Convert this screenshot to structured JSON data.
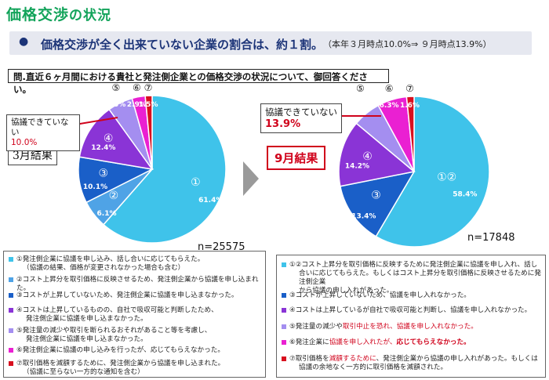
{
  "page": {
    "title_main": "価格交渉",
    "title_rest": "の状況",
    "bullet": "●",
    "headline": "価格交渉が全く出来ていない企業の割合は、約１割。",
    "headline_note": "（本年３月時点10.0%⇒ ９月時点13.9%）",
    "question": "問.直近６ヶ月間における貴社と発注側企業との価格交渉の状況について、御回答ください。"
  },
  "colors": {
    "s1": "#3fc3ea",
    "s2": "#4fa3e6",
    "s3": "#1a5fc8",
    "s4": "#8a34d6",
    "s5": "#a48ef0",
    "s6": "#ea20d2",
    "s7": "#d80f1f",
    "title_green": "#12a35a",
    "headline_navy": "#1c3478",
    "accent_red": "#d0021b"
  },
  "chart_data": [
    {
      "type": "pie",
      "title": "3月結果",
      "n_label": "n=25575",
      "callout_label": "協議できていない",
      "callout_value": "10.0%",
      "slices": [
        {
          "label": "①",
          "value": 61.4,
          "value_text": "61.4%",
          "color": "#3fc3ea"
        },
        {
          "label": "②",
          "value": 6.1,
          "value_text": "6.1%",
          "color": "#4fa3e6"
        },
        {
          "label": "③",
          "value": 10.1,
          "value_text": "10.1%",
          "color": "#1a5fc8"
        },
        {
          "label": "④",
          "value": 12.4,
          "value_text": "12.4%",
          "color": "#8a34d6"
        },
        {
          "label": "⑤",
          "value": 5.5,
          "value_text": "5.5%",
          "color": "#a48ef0"
        },
        {
          "label": "⑥",
          "value": 2.9,
          "value_text": "2.9%",
          "color": "#ea20d2"
        },
        {
          "label": "⑦",
          "value": 1.5,
          "value_text": "1.5%",
          "color": "#d80f1f"
        }
      ]
    },
    {
      "type": "pie",
      "title": "9月結果",
      "n_label": "n=17848",
      "callout_label": "協議できていない",
      "callout_value": "13.9%",
      "slices": [
        {
          "label": "①②",
          "value": 58.4,
          "value_text": "58.4%",
          "color": "#3fc3ea"
        },
        {
          "label": "③",
          "value": 13.4,
          "value_text": "13.4%",
          "color": "#1a5fc8"
        },
        {
          "label": "④",
          "value": 14.2,
          "value_text": "14.2%",
          "color": "#8a34d6"
        },
        {
          "label": "⑤",
          "value": 6.0,
          "value_text": "6.0%",
          "color": "#a48ef0"
        },
        {
          "label": "⑥",
          "value": 6.3,
          "value_text": "6.3%",
          "color": "#ea20d2"
        },
        {
          "label": "⑦",
          "value": 1.6,
          "value_text": "1.6%",
          "color": "#d80f1f"
        }
      ]
    }
  ],
  "legend_march": [
    {
      "key": "s1",
      "lines": [
        "①発注側企業に協議を申し込み、話し合いに応じてもらえた。",
        "（協議の結果、価格が変更されなかった場合も含む）"
      ]
    },
    {
      "key": "s2",
      "lines": [
        "②コスト上昇分を取引価格に反映させるため、発注側企業から協議を申し込まれた。"
      ]
    },
    {
      "key": "s3",
      "lines": [
        "③コストが上昇していないため、発注側企業に協議を申し込まなかった。"
      ]
    },
    {
      "key": "s4",
      "lines": [
        "④コストは上昇しているものの、自社で吸収可能と判断したため、",
        "発注側企業に協議を申し込まなかった。"
      ]
    },
    {
      "key": "s5",
      "lines": [
        "⑤発注量の減少や取引を断られるおそれがあること等を考慮し、",
        "発注側企業に協議を申し込まなかった。"
      ]
    },
    {
      "key": "s6",
      "lines": [
        "⑥発注側企業に協議の申し込みを行ったが、応じてもらえなかった。"
      ]
    },
    {
      "key": "s7",
      "lines": [
        "⑦取引価格を減額するために、発注側企業から協議を申し込まれた。",
        "（協議に至らない一方的な通知を含む）"
      ]
    }
  ],
  "legend_september": {
    "i1": {
      "l1": "①②コスト上昇分を取引価格に反映するために発注側企業に協議を申し入れ、話し",
      "l2": "合いに応じてもらえた。もしくはコスト上昇分を取引価格に反映させるために発注側企業",
      "l3": "から協議の申し入れがあった。"
    },
    "i3": "③コストが上昇していないため、協議を申し入れなかった。",
    "i4": "④コストは上昇しているが自社で吸収可能と判断し、協議を申し入れなかった。",
    "i5": {
      "a": "⑤発注量の減少や",
      "b": "取引中止を恐れ、協議を申し入れなかった。"
    },
    "i6": {
      "a": "⑥発注企業に",
      "b": "協議を申し入れたが、",
      "c": "応じてもらえなかった。"
    },
    "i7": {
      "l1a": "⑦取引価格を",
      "l1b": "減額するために",
      "l1c": "、発注側企業から協議の申し入れがあった。もしくは",
      "l2": "協議の余地なく一方的に取引価格を減額された。"
    }
  }
}
